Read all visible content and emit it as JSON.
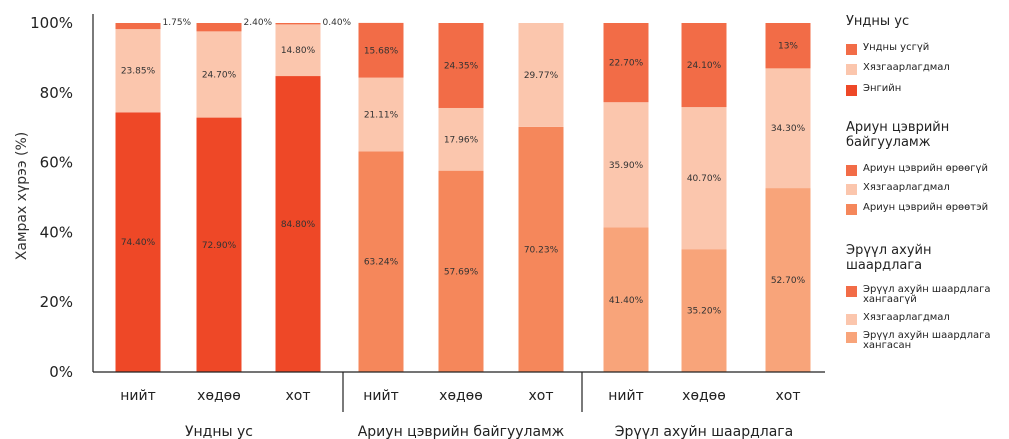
{
  "chart_data": {
    "type": "bar",
    "stacked": true,
    "ylabel": "Хамрах хүрээ (%)",
    "ylim": [
      0,
      100
    ],
    "yticks": [
      "0%",
      "20%",
      "40%",
      "60%",
      "80%",
      "100%"
    ],
    "grid": false,
    "legend_position": "right",
    "groups": [
      {
        "name": "Ундны ус",
        "legend_title": "Ундны ус",
        "categories": [
          "нийт",
          "хөдөө",
          "хот"
        ],
        "series": [
          {
            "name": "Энгийн",
            "color": "#ee4827",
            "values": [
              74.4,
              72.9,
              84.8
            ],
            "labels": [
              "74.40%",
              "72.90%",
              "84.80%"
            ]
          },
          {
            "name": "Хязгаарлагдмал",
            "color": "#fbc6ad",
            "values": [
              23.85,
              24.7,
              14.8
            ],
            "labels": [
              "23.85%",
              "24.70%",
              "14.80%"
            ]
          },
          {
            "name": "Ундны усгүй",
            "color": "#f26c47",
            "values": [
              1.75,
              2.4,
              0.4
            ],
            "labels": [
              "1.75%",
              "2.40%",
              "0.40%"
            ]
          }
        ]
      },
      {
        "name": "Ариун цэврийн байгууламж",
        "legend_title": "Ариун цэврийн байгууламж",
        "categories": [
          "нийт",
          "хөдөө",
          "хот"
        ],
        "series": [
          {
            "name": "Ариун цэврийн өрөөтэй",
            "color": "#f5875b",
            "values": [
              63.24,
              57.69,
              70.23
            ],
            "labels": [
              "63.24%",
              "57.69%",
              "70.23%"
            ]
          },
          {
            "name": "Хязгаарлагдмал",
            "color": "#fbc6ad",
            "values": [
              21.11,
              17.96,
              29.77
            ],
            "labels": [
              "21.11%",
              "17.96%",
              "29.77%"
            ]
          },
          {
            "name": "Ариун цэврийн өрөөгүй",
            "color": "#f26c47",
            "values": [
              15.68,
              24.35,
              0
            ],
            "labels": [
              "15.68%",
              "24.35%",
              ""
            ]
          }
        ]
      },
      {
        "name": "Эрүүл ахуйн шаардлага",
        "legend_title": "Эрүүл ахуйн шаардлага",
        "categories": [
          "нийт",
          "хөдөө",
          "хот"
        ],
        "series": [
          {
            "name": "Эрүүл ахуйн шаардлага хангасан",
            "color": "#f8a47a",
            "values": [
              41.4,
              35.2,
              52.7
            ],
            "labels": [
              "41.40%",
              "35.20%",
              "52.70%"
            ]
          },
          {
            "name": "Хязгаарлагдмал",
            "color": "#fbc6ad",
            "values": [
              35.9,
              40.7,
              34.3
            ],
            "labels": [
              "35.90%",
              "40.70%",
              "34.30%"
            ]
          },
          {
            "name": "Эрүүл ахуйн шаардлага хангаагүй",
            "color": "#f26c47",
            "values": [
              22.7,
              24.1,
              13.0
            ],
            "labels": [
              "22.70%",
              "24.10%",
              "13%"
            ]
          }
        ]
      }
    ]
  }
}
